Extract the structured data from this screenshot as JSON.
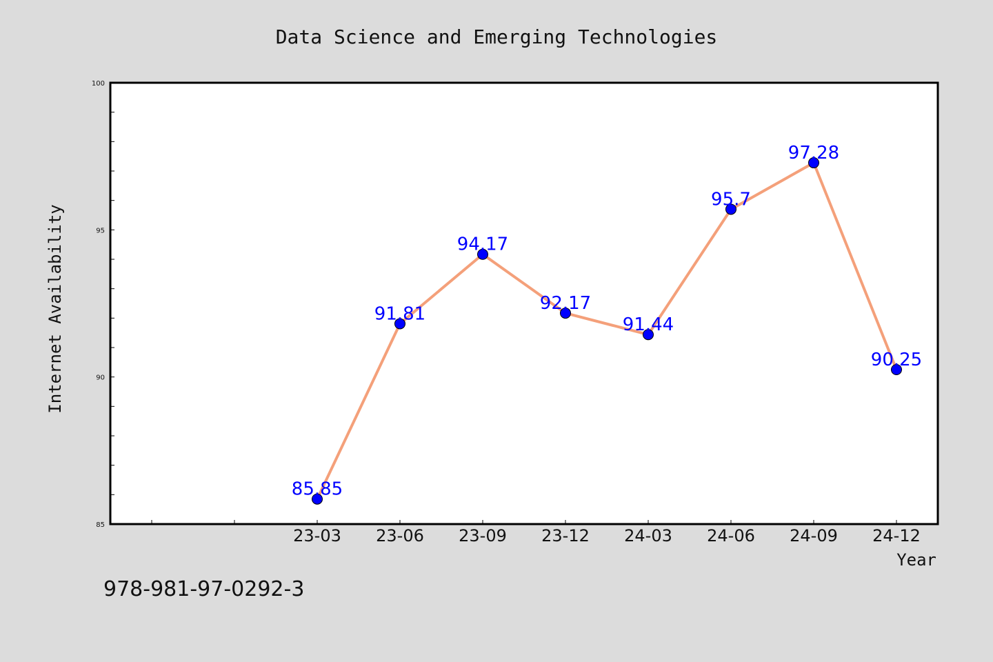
{
  "page": {
    "isbn": "978-981-97-0292-3"
  },
  "colors": {
    "background": "#dcdcdc",
    "plot_background": "#ffffff",
    "line": "#f4a07a",
    "marker": "#0000ff",
    "data_label": "#0000ff",
    "text": "#111111"
  },
  "chart_data": {
    "type": "line",
    "title": "Data Science and Emerging Technologies",
    "xlabel": "Year",
    "ylabel": "Internet Availability",
    "categories": [
      "23-03",
      "23-06",
      "23-09",
      "23-12",
      "24-03",
      "24-06",
      "24-09",
      "24-12"
    ],
    "series": [
      {
        "values": [
          85.85,
          91.81,
          94.17,
          92.17,
          91.44,
          95.7,
          97.28,
          90.25
        ],
        "labels": [
          "85.85",
          "91.81",
          "94.17",
          "92.17",
          "91.44",
          "95.7",
          "97.28",
          "90.25"
        ]
      }
    ],
    "ylim": [
      85,
      100
    ],
    "y_ticks": [
      "85",
      "90",
      "95",
      "100"
    ],
    "y_tick_values": [
      85,
      90,
      95,
      100
    ],
    "grid": false,
    "legend": "none"
  }
}
